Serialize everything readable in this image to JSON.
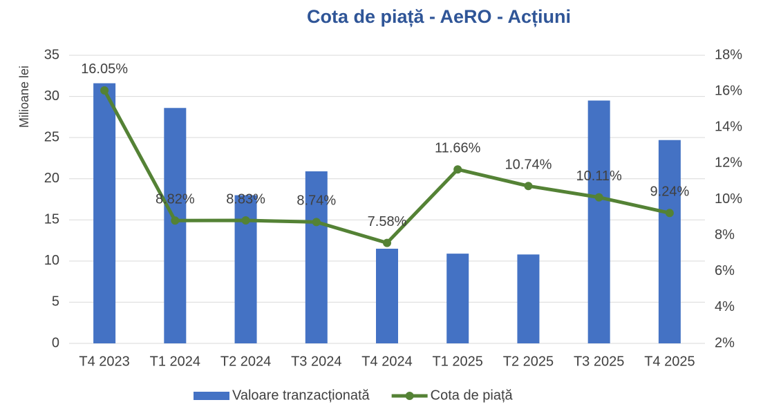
{
  "chart_data": {
    "type": "bar_line",
    "title": "Cota de piață - AeRO - Acțiuni",
    "y_label": "Milioane lei",
    "categories": [
      "T4 2023",
      "T1 2024",
      "T2 2024",
      "T3 2024",
      "T4 2024",
      "T1 2025",
      "T2 2025",
      "T3 2025",
      "T4 2025"
    ],
    "series": [
      {
        "name": "Valoare tranzacționată",
        "type": "bar",
        "color": "#4472c4",
        "values": [
          31.6,
          28.6,
          18.0,
          20.9,
          11.5,
          10.9,
          10.8,
          29.5,
          24.7
        ]
      },
      {
        "name": "Cota de piață",
        "type": "line",
        "axis": "y2",
        "color": "#548235",
        "values": [
          16.05,
          8.82,
          8.83,
          8.74,
          7.58,
          11.66,
          10.74,
          10.11,
          9.24
        ],
        "value_labels": [
          "16.05%",
          "8.82%",
          "8.83%",
          "8.74%",
          "7.58%",
          "11.66%",
          "10.74%",
          "10.11%",
          "9.24%"
        ]
      }
    ],
    "ylim": [
      0,
      35
    ],
    "yticks": [
      0,
      5,
      10,
      15,
      20,
      25,
      30,
      35
    ],
    "y2lim": [
      2,
      18
    ],
    "y2ticks": [
      {
        "value": 2,
        "label": "2%"
      },
      {
        "value": 4,
        "label": "4%"
      },
      {
        "value": 6,
        "label": "6%"
      },
      {
        "value": 8,
        "label": "8%"
      },
      {
        "value": 10,
        "label": "10%"
      },
      {
        "value": 12,
        "label": "12%"
      },
      {
        "value": 14,
        "label": "14%"
      },
      {
        "value": 16,
        "label": "16%"
      },
      {
        "value": 18,
        "label": "18%"
      }
    ],
    "grid": true,
    "legend": "bottom"
  }
}
